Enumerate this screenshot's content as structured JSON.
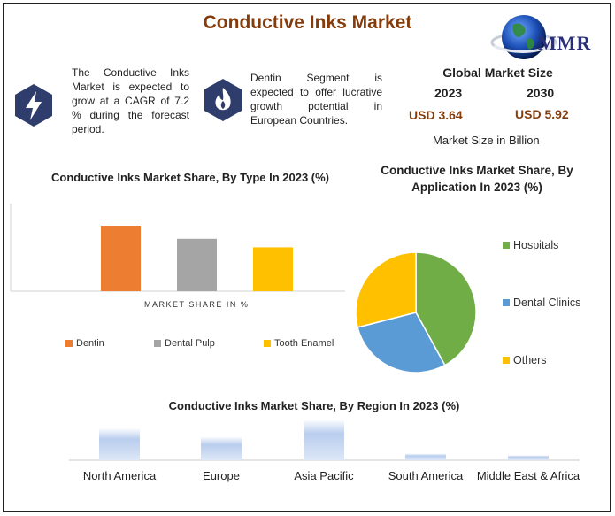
{
  "header": {
    "title": "Conductive Inks Market"
  },
  "logo": {
    "text": "MMR",
    "icon": "globe-icon"
  },
  "info_left": {
    "icon": "lightning-icon",
    "text": "The Conductive Inks Market is expected to grow at a CAGR of 7.2 % during the forecast period."
  },
  "info_mid": {
    "icon": "flame-icon",
    "text": "Dentin Segment is expected to offer lucrative growth potential in European Countries."
  },
  "market_size": {
    "title": "Global Market Size",
    "year1": "2023",
    "value1": "USD 3.64",
    "year2": "2030",
    "value2": "USD 5.92",
    "caption": "Market Size in Billion"
  },
  "colors": {
    "accent": "#843c0c",
    "icon_bg": "#2e3d6b",
    "dentin": "#ed7d31",
    "dental_pulp": "#a5a5a5",
    "tooth_enamel": "#ffc000",
    "hospitals": "#70ad47",
    "dental_clinics": "#5b9bd5",
    "others": "#ffc000"
  },
  "chart_data": [
    {
      "type": "bar",
      "title": "Conductive Inks Market Share, By Type In 2023 (%)",
      "xlabel": "MARKET SHARE IN %",
      "ylabel": "",
      "categories": [
        "Dentin",
        "Dental Pulp",
        "Tooth Enamel"
      ],
      "values": [
        100,
        80,
        67
      ],
      "ylim": [
        0,
        100
      ],
      "legend": [
        "Dentin",
        "Dental Pulp",
        "Tooth Enamel"
      ],
      "legend_position": "bottom",
      "grid": false
    },
    {
      "type": "pie",
      "title": "Conductive Inks Market Share, By Application In 2023 (%)",
      "categories": [
        "Hospitals",
        "Dental Clinics",
        "Others"
      ],
      "values": [
        42,
        29,
        29
      ],
      "legend_position": "right"
    },
    {
      "type": "bar",
      "title": "Conductive Inks Market Share, By Region In 2023 (%)",
      "categories": [
        "North America",
        "Europe",
        "Asia Pacific",
        "South America",
        "Middle East & Africa"
      ],
      "values": [
        38,
        28,
        48,
        8,
        6
      ],
      "ylim": [
        0,
        50
      ],
      "grid": false
    }
  ]
}
